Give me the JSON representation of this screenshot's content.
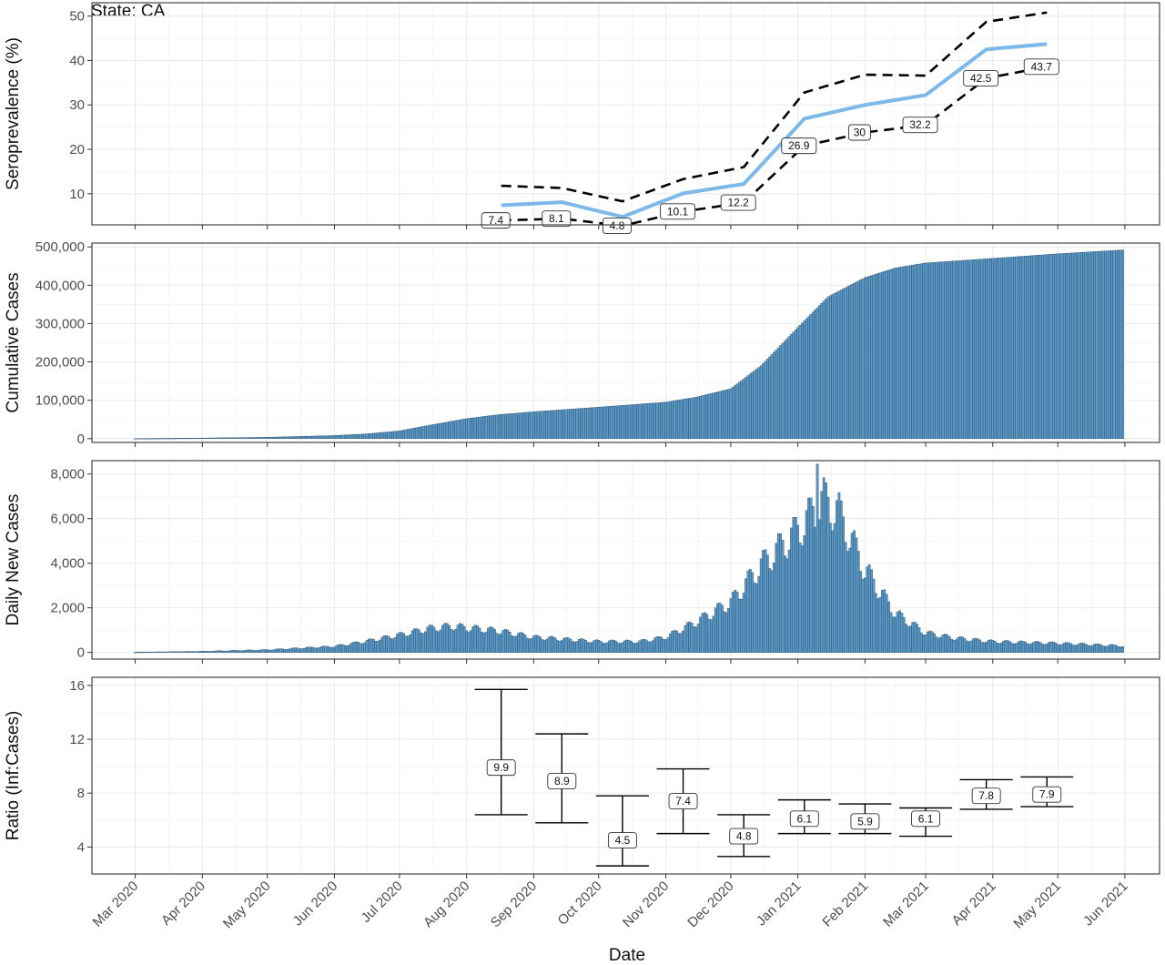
{
  "title": "State: CA",
  "xlabel": "Date",
  "x_ticks": [
    "Mar 2020",
    "Apr 2020",
    "May 2020",
    "Jun 2020",
    "Jul 2020",
    "Aug 2020",
    "Sep 2020",
    "Oct 2020",
    "Nov 2020",
    "Dec 2020",
    "Jan 2021",
    "Feb 2021",
    "Mar 2021",
    "Apr 2021",
    "May 2021",
    "Jun 2021"
  ],
  "colors": {
    "line": "#7db9e8",
    "bar": "#5b9ac7",
    "bar_edge": "#1f3b57",
    "grid": "#ebebeb",
    "panel_border": "#333333"
  },
  "chart_data": [
    {
      "type": "line",
      "ylabel": "Seroprevalence (%)",
      "yticks": [
        "10",
        "20",
        "30",
        "40",
        "50"
      ],
      "ylim": [
        3,
        53
      ],
      "x": [
        "2020-08-17",
        "2020-09-14",
        "2020-10-12",
        "2020-11-09",
        "2020-12-07",
        "2021-01-04",
        "2021-02-01",
        "2021-03-01",
        "2021-03-29",
        "2021-04-26"
      ],
      "series": [
        {
          "role": "estimate",
          "values": [
            7.4,
            8.1,
            4.8,
            10.1,
            12.2,
            26.9,
            30,
            32.2,
            42.5,
            43.7
          ]
        },
        {
          "role": "upper",
          "values": [
            11.8,
            11.3,
            8.3,
            13.3,
            16.0,
            32.8,
            36.8,
            36.6,
            48.7,
            50.8
          ]
        },
        {
          "role": "lower",
          "values": [
            4.0,
            4.4,
            2.8,
            6.0,
            8.0,
            20.8,
            23.8,
            25.5,
            36.0,
            38.6
          ]
        }
      ],
      "labels": [
        "7.4",
        "8.1",
        "4.8",
        "10.1",
        "12.2",
        "26.9",
        "30",
        "32.2",
        "42.5",
        "43.7"
      ]
    },
    {
      "type": "bar",
      "ylabel": "Cumulative Cases",
      "yticks": [
        "0",
        "100,000",
        "200,000",
        "300,000",
        "400,000",
        "500,000"
      ],
      "ylim": [
        -10000,
        510000
      ],
      "x_start": "2020-03-01",
      "x_end": "2021-05-31",
      "knots": [
        [
          "2020-03-01",
          200
        ],
        [
          "2020-04-01",
          1500
        ],
        [
          "2020-05-01",
          3500
        ],
        [
          "2020-06-01",
          8000
        ],
        [
          "2020-06-15",
          12000
        ],
        [
          "2020-07-01",
          20000
        ],
        [
          "2020-07-15",
          35000
        ],
        [
          "2020-08-01",
          52000
        ],
        [
          "2020-08-15",
          62000
        ],
        [
          "2020-09-01",
          70000
        ],
        [
          "2020-10-01",
          82000
        ],
        [
          "2020-11-01",
          95000
        ],
        [
          "2020-11-15",
          108000
        ],
        [
          "2020-12-01",
          130000
        ],
        [
          "2020-12-15",
          190000
        ],
        [
          "2021-01-01",
          290000
        ],
        [
          "2021-01-15",
          370000
        ],
        [
          "2021-02-01",
          420000
        ],
        [
          "2021-02-15",
          445000
        ],
        [
          "2021-03-01",
          458000
        ],
        [
          "2021-04-01",
          470000
        ],
        [
          "2021-05-01",
          482000
        ],
        [
          "2021-05-31",
          492000
        ]
      ]
    },
    {
      "type": "bar",
      "ylabel": "Daily New Cases",
      "yticks": [
        "0",
        "2,000",
        "4,000",
        "6,000",
        "8,000"
      ],
      "ylim": [
        -300,
        8600
      ],
      "x_start": "2020-03-01",
      "x_end": "2021-05-31",
      "knots": [
        [
          "2020-03-01",
          10
        ],
        [
          "2020-04-01",
          50
        ],
        [
          "2020-05-01",
          120
        ],
        [
          "2020-06-01",
          280
        ],
        [
          "2020-06-15",
          500
        ],
        [
          "2020-07-01",
          800
        ],
        [
          "2020-07-15",
          1100
        ],
        [
          "2020-07-25",
          1200
        ],
        [
          "2020-08-15",
          1000
        ],
        [
          "2020-09-01",
          700
        ],
        [
          "2020-10-01",
          500
        ],
        [
          "2020-10-20",
          500
        ],
        [
          "2020-11-01",
          700
        ],
        [
          "2020-11-15",
          1400
        ],
        [
          "2020-12-01",
          2300
        ],
        [
          "2020-12-15",
          4000
        ],
        [
          "2021-01-01",
          5600
        ],
        [
          "2021-01-13",
          7000
        ],
        [
          "2021-01-20",
          6400
        ],
        [
          "2021-02-01",
          3800
        ],
        [
          "2021-02-15",
          1800
        ],
        [
          "2021-03-01",
          900
        ],
        [
          "2021-03-15",
          650
        ],
        [
          "2021-04-01",
          500
        ],
        [
          "2021-05-01",
          420
        ],
        [
          "2021-05-31",
          300
        ]
      ],
      "max_value": 8450,
      "max_date": "2021-01-10"
    },
    {
      "type": "errorbar",
      "ylabel": "Ratio (Inf:Cases)",
      "yticks": [
        "4",
        "8",
        "12",
        "16"
      ],
      "ylim": [
        2,
        16.6
      ],
      "x": [
        "2020-08-17",
        "2020-09-14",
        "2020-10-12",
        "2020-11-09",
        "2020-12-07",
        "2021-01-04",
        "2021-02-01",
        "2021-03-01",
        "2021-03-29",
        "2021-04-26"
      ],
      "estimate": [
        9.9,
        8.9,
        4.5,
        7.4,
        4.8,
        6.1,
        5.9,
        6.1,
        7.8,
        7.9
      ],
      "upper": [
        15.7,
        12.4,
        7.8,
        9.8,
        6.4,
        7.5,
        7.2,
        6.9,
        9.0,
        9.2
      ],
      "lower": [
        6.4,
        5.8,
        2.6,
        5.0,
        3.3,
        5.0,
        5.0,
        4.8,
        6.8,
        7.0
      ],
      "labels": [
        "9.9",
        "8.9",
        "4.5",
        "7.4",
        "4.8",
        "6.1",
        "5.9",
        "6.1",
        "7.8",
        "7.9"
      ]
    }
  ]
}
